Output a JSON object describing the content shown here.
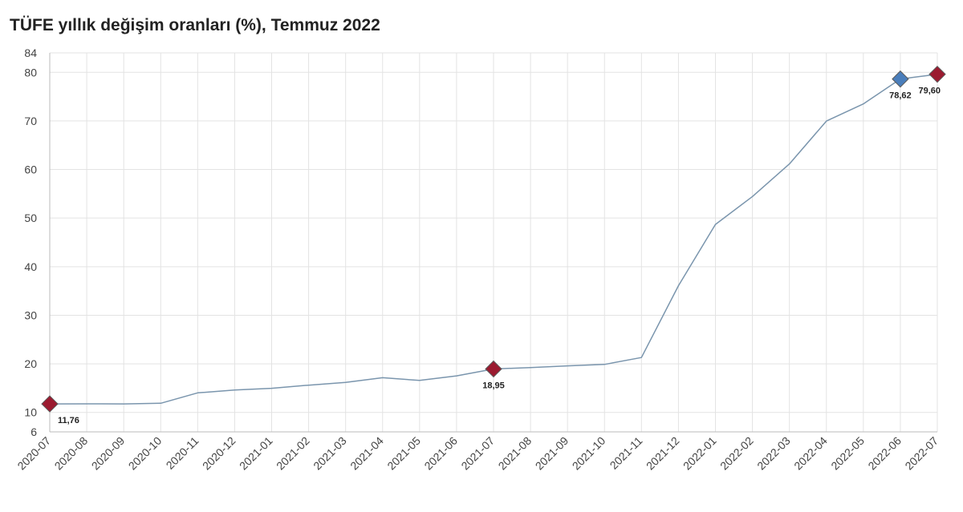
{
  "chart_data": {
    "type": "line",
    "title": "TÜFE yıllık değişim oranları (%), Temmuz 2022",
    "xlabel": "",
    "ylabel": "",
    "ylim": [
      6,
      84
    ],
    "y_ticks": [
      6,
      10,
      20,
      30,
      40,
      50,
      60,
      70,
      80,
      84
    ],
    "grid": true,
    "categories": [
      "2020-07",
      "2020-08",
      "2020-09",
      "2020-10",
      "2020-11",
      "2020-12",
      "2021-01",
      "2021-02",
      "2021-03",
      "2021-04",
      "2021-05",
      "2021-06",
      "2021-07",
      "2021-08",
      "2021-09",
      "2021-10",
      "2021-11",
      "2021-12",
      "2022-01",
      "2022-02",
      "2022-03",
      "2022-04",
      "2022-05",
      "2022-06",
      "2022-07"
    ],
    "series": [
      {
        "values": [
          11.76,
          11.77,
          11.75,
          11.89,
          14.03,
          14.6,
          14.97,
          15.61,
          16.19,
          17.14,
          16.59,
          17.53,
          18.95,
          19.25,
          19.58,
          19.89,
          21.31,
          36.08,
          48.69,
          54.44,
          61.14,
          69.97,
          73.5,
          78.62,
          79.6
        ],
        "color": "#7a95ad"
      }
    ],
    "markers": [
      {
        "index": 0,
        "label": "11,76",
        "color": "#9b1b30"
      },
      {
        "index": 12,
        "label": "18,95",
        "color": "#9b1b30"
      },
      {
        "index": 23,
        "label": "78,62",
        "color": "#4a7ebb"
      },
      {
        "index": 24,
        "label": "79,60",
        "color": "#9b1b30"
      }
    ],
    "colors": {
      "line": "#7a95ad",
      "grid": "#e3e3e3",
      "axis": "#bbbbbb",
      "marker_red": "#9b1b30",
      "marker_blue": "#4a7ebb"
    }
  }
}
